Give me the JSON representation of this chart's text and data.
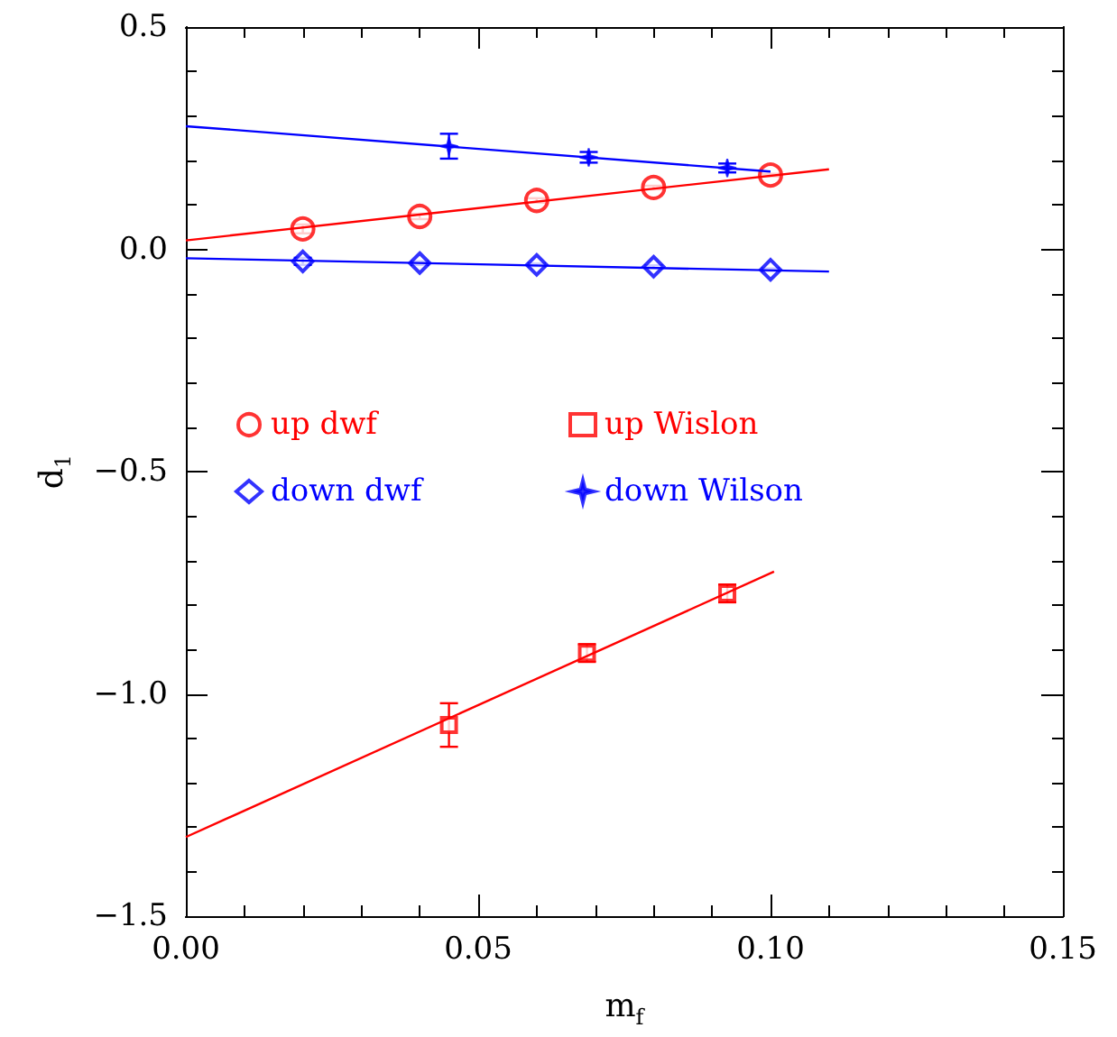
{
  "chart_data": {
    "type": "scatter",
    "xlabel": "m$_{f}$",
    "ylabel": "d$_{1}$",
    "xlim": [
      0,
      0.15
    ],
    "ylim": [
      -1.5,
      0.5
    ],
    "xticks": [
      {
        "value": 0,
        "label": "0.00"
      },
      {
        "value": 0.01,
        "label": null
      },
      {
        "value": 0.02,
        "label": null
      },
      {
        "value": 0.03,
        "label": null
      },
      {
        "value": 0.04,
        "label": null
      },
      {
        "value": 0.05,
        "label": "0.05"
      },
      {
        "value": 0.06,
        "label": null
      },
      {
        "value": 0.07,
        "label": null
      },
      {
        "value": 0.08,
        "label": null
      },
      {
        "value": 0.09,
        "label": null
      },
      {
        "value": 0.1,
        "label": "0.10"
      },
      {
        "value": 0.11,
        "label": null
      },
      {
        "value": 0.12,
        "label": null
      },
      {
        "value": 0.13,
        "label": null
      },
      {
        "value": 0.14,
        "label": null
      },
      {
        "value": 0.15,
        "label": "0.15"
      }
    ],
    "yticks": [
      {
        "value": -1.5,
        "label": "−1.5"
      },
      {
        "value": -1.4,
        "label": null
      },
      {
        "value": -1.3,
        "label": null
      },
      {
        "value": -1.2,
        "label": null
      },
      {
        "value": -1.1,
        "label": null
      },
      {
        "value": -1.0,
        "label": "−1.0"
      },
      {
        "value": -0.9,
        "label": null
      },
      {
        "value": -0.8,
        "label": null
      },
      {
        "value": -0.7,
        "label": null
      },
      {
        "value": -0.6,
        "label": null
      },
      {
        "value": -0.5,
        "label": "−0.5"
      },
      {
        "value": -0.4,
        "label": null
      },
      {
        "value": -0.3,
        "label": null
      },
      {
        "value": -0.2,
        "label": null
      },
      {
        "value": -0.1,
        "label": null
      },
      {
        "value": 0.0,
        "label": "0.0"
      },
      {
        "value": 0.1,
        "label": null
      },
      {
        "value": 0.2,
        "label": null
      },
      {
        "value": 0.3,
        "label": null
      },
      {
        "value": 0.4,
        "label": null
      },
      {
        "value": 0.5,
        "label": "0.5"
      }
    ],
    "grid": false,
    "legend": "left",
    "series": [
      {
        "name": "up dwf",
        "marker": "circle",
        "color": "#ff0000",
        "x": [
          0.02,
          0.04,
          0.06,
          0.08,
          0.1
        ],
        "values": [
          0.046,
          0.074,
          0.11,
          0.139,
          0.167
        ],
        "errors": [
          0.01,
          0.006,
          0.005,
          0.004,
          0.003
        ]
      },
      {
        "name": "up Wislon",
        "marker": "square",
        "color": "#ff0000",
        "x": [
          0.045,
          0.0686,
          0.0926
        ],
        "values": [
          -1.07,
          -0.908,
          -0.774
        ],
        "errors": [
          0.049,
          0.02,
          0.02
        ]
      },
      {
        "name": "down dwf",
        "marker": "diamond",
        "color": "#0000ff",
        "x": [
          0.02,
          0.04,
          0.06,
          0.08,
          0.1
        ],
        "values": [
          -0.027,
          -0.031,
          -0.035,
          -0.039,
          -0.046
        ],
        "errors": [
          0.008,
          0.004,
          0.003,
          0.003,
          0.003
        ]
      },
      {
        "name": "down Wilson",
        "marker": "star",
        "color": "#0000ff",
        "x": [
          0.045,
          0.0689,
          0.0926
        ],
        "values": [
          0.232,
          0.207,
          0.183
        ],
        "errors": [
          0.028,
          0.012,
          0.01
        ]
      },
      {
        "type": "line",
        "marker": "none",
        "color": "#ff0000",
        "x": [
          0,
          0.11
        ],
        "values": [
          0.02,
          0.18
        ]
      },
      {
        "type": "line",
        "marker": "none",
        "color": "#ff0000",
        "x": [
          0,
          0.1006
        ],
        "values": [
          -1.322,
          -0.725
        ]
      },
      {
        "type": "line",
        "marker": "none",
        "color": "#0000ff",
        "x": [
          0,
          0.11
        ],
        "values": [
          -0.02,
          -0.05
        ]
      },
      {
        "type": "line",
        "marker": "none",
        "color": "#0000ff",
        "x": [
          0,
          0.1
        ],
        "values": [
          0.277,
          0.175
        ]
      }
    ]
  }
}
